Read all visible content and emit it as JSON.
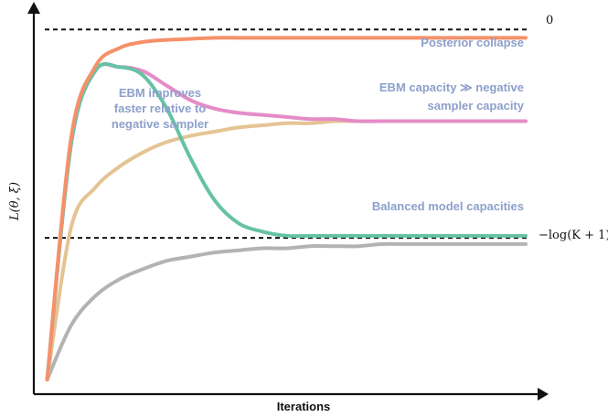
{
  "chart_data": {
    "type": "line",
    "xlabel": "Iterations",
    "ylabel": "L(θ, ξ)",
    "x": [
      0,
      0.05,
      0.1,
      0.15,
      0.2,
      0.25,
      0.3,
      0.35,
      0.4,
      0.45,
      0.5,
      0.55,
      0.6,
      0.65,
      0.7,
      0.75,
      0.8,
      0.85,
      0.9,
      0.95,
      1.0
    ],
    "reference_lines": [
      {
        "label": "0",
        "y": 0.0
      },
      {
        "label": "−log(K + 1)",
        "y": -1.0
      }
    ],
    "series": [
      {
        "color": "#f5916a",
        "values": [
          -1.68,
          -0.52,
          -0.18,
          -0.09,
          -0.06,
          -0.05,
          -0.045,
          -0.04,
          -0.04,
          -0.04,
          -0.04,
          -0.04,
          -0.04,
          -0.04,
          -0.04,
          -0.04,
          -0.04,
          -0.04,
          -0.04,
          -0.04,
          -0.04
        ]
      },
      {
        "color": "#e58cc8",
        "values": [
          -1.68,
          -0.55,
          -0.2,
          -0.18,
          -0.2,
          -0.27,
          -0.34,
          -0.38,
          -0.4,
          -0.41,
          -0.42,
          -0.43,
          -0.43,
          -0.44,
          -0.44,
          -0.44,
          -0.44,
          -0.44,
          -0.44,
          -0.44,
          -0.44
        ]
      },
      {
        "color": "#66c2a5",
        "values": [
          -1.68,
          -0.55,
          -0.2,
          -0.18,
          -0.22,
          -0.38,
          -0.62,
          -0.82,
          -0.93,
          -0.97,
          -0.99,
          -0.99,
          -0.99,
          -0.99,
          -0.99,
          -0.99,
          -0.99,
          -0.99,
          -0.99,
          -0.99,
          -0.99
        ]
      },
      {
        "color": "#e5c494",
        "values": [
          -1.68,
          -0.95,
          -0.76,
          -0.66,
          -0.59,
          -0.54,
          -0.51,
          -0.49,
          -0.47,
          -0.46,
          -0.45,
          -0.45,
          -0.44,
          -0.44,
          -0.44,
          -0.44,
          -0.44,
          -0.44,
          -0.44,
          -0.44,
          -0.44
        ]
      },
      {
        "color": "#b3b3b3",
        "values": [
          -1.68,
          -1.42,
          -1.28,
          -1.2,
          -1.15,
          -1.11,
          -1.09,
          -1.07,
          -1.06,
          -1.05,
          -1.05,
          -1.04,
          -1.04,
          -1.04,
          -1.03,
          -1.03,
          -1.03,
          -1.03,
          -1.03,
          -1.03,
          -1.03
        ]
      }
    ],
    "annotations": [
      {
        "text": "Posterior collapse",
        "color": "#8da0cb"
      },
      {
        "text": "EBM capacity ≫ negative",
        "color": "#8da0cb"
      },
      {
        "text": "sampler capacity",
        "color": "#8da0cb"
      },
      {
        "text": "EBM improves",
        "color": "#8da0cb"
      },
      {
        "text": "faster relative to",
        "color": "#8da0cb"
      },
      {
        "text": "negative sampler",
        "color": "#8da0cb"
      },
      {
        "text": "Balanced model capacities",
        "color": "#8da0cb"
      }
    ],
    "ylim": [
      -1.75,
      0.08
    ],
    "xlim": [
      -0.005,
      1.0
    ],
    "grid": false,
    "legend": "none"
  }
}
